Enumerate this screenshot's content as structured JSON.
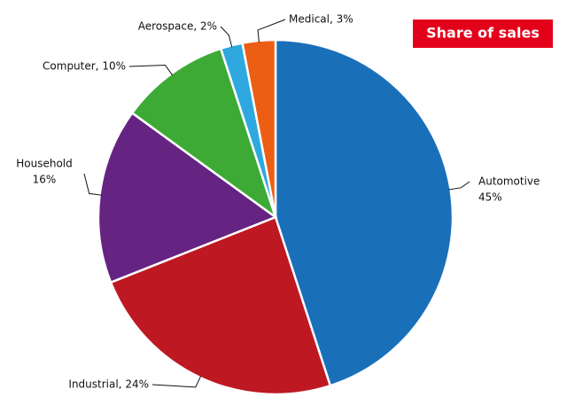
{
  "chart_data": {
    "type": "pie",
    "title": "Share of sales",
    "values": [
      45,
      24,
      16,
      10,
      2,
      3
    ],
    "value_labels": [
      [
        "Automotive",
        "45%"
      ],
      [
        "Industrial, 24%"
      ],
      [
        "Household",
        "16%"
      ],
      [
        "Computer, 10%"
      ],
      [
        "Aerospace, 2%"
      ],
      [
        "Medical, 3%"
      ]
    ],
    "colors": [
      "#1a6fb9",
      "#be1823",
      "#652382",
      "#3daa35",
      "#2fa8e0",
      "#ec5e14"
    ]
  }
}
